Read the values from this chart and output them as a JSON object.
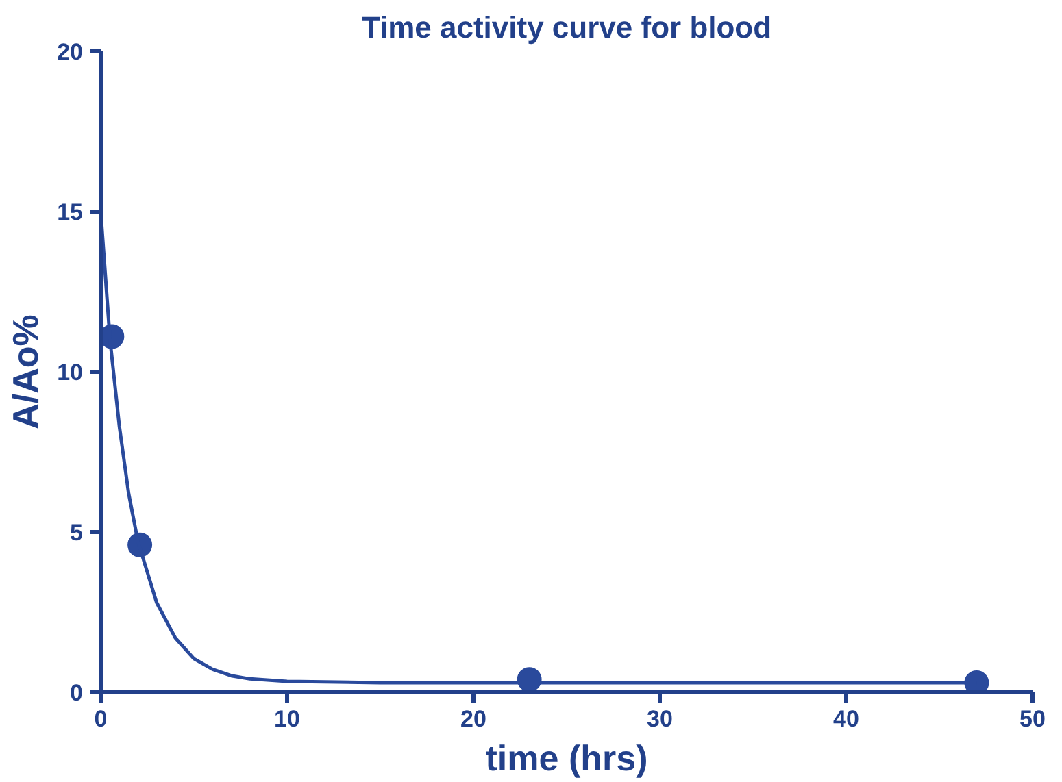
{
  "chart_data": {
    "type": "line",
    "title": "Time activity curve for blood",
    "xlabel": "time (hrs)",
    "ylabel": "A/Ao%",
    "xlim": [
      0,
      50
    ],
    "xticks": [
      0,
      10,
      20,
      30,
      40,
      50
    ],
    "ylim": [
      0,
      20
    ],
    "yticks": [
      0,
      5,
      10,
      15,
      20
    ],
    "grid": false,
    "marker": "circle",
    "series": [
      {
        "type": "scatter",
        "color": "#2a4a9c",
        "x": [
          0.6,
          2.1,
          23,
          47
        ],
        "values": [
          11.1,
          4.6,
          0.4,
          0.3
        ]
      },
      {
        "color": "#2a4a9c",
        "marker": "none",
        "line_style": "solid",
        "x": [
          0,
          0.5,
          1,
          1.5,
          2,
          3,
          4,
          5,
          6,
          7,
          8,
          10,
          15,
          20,
          30,
          40,
          47
        ],
        "values": [
          15,
          11.0,
          8.3,
          6.2,
          4.7,
          2.8,
          1.7,
          1.05,
          0.72,
          0.52,
          0.42,
          0.34,
          0.3,
          0.3,
          0.3,
          0.3,
          0.3
        ]
      }
    ]
  }
}
